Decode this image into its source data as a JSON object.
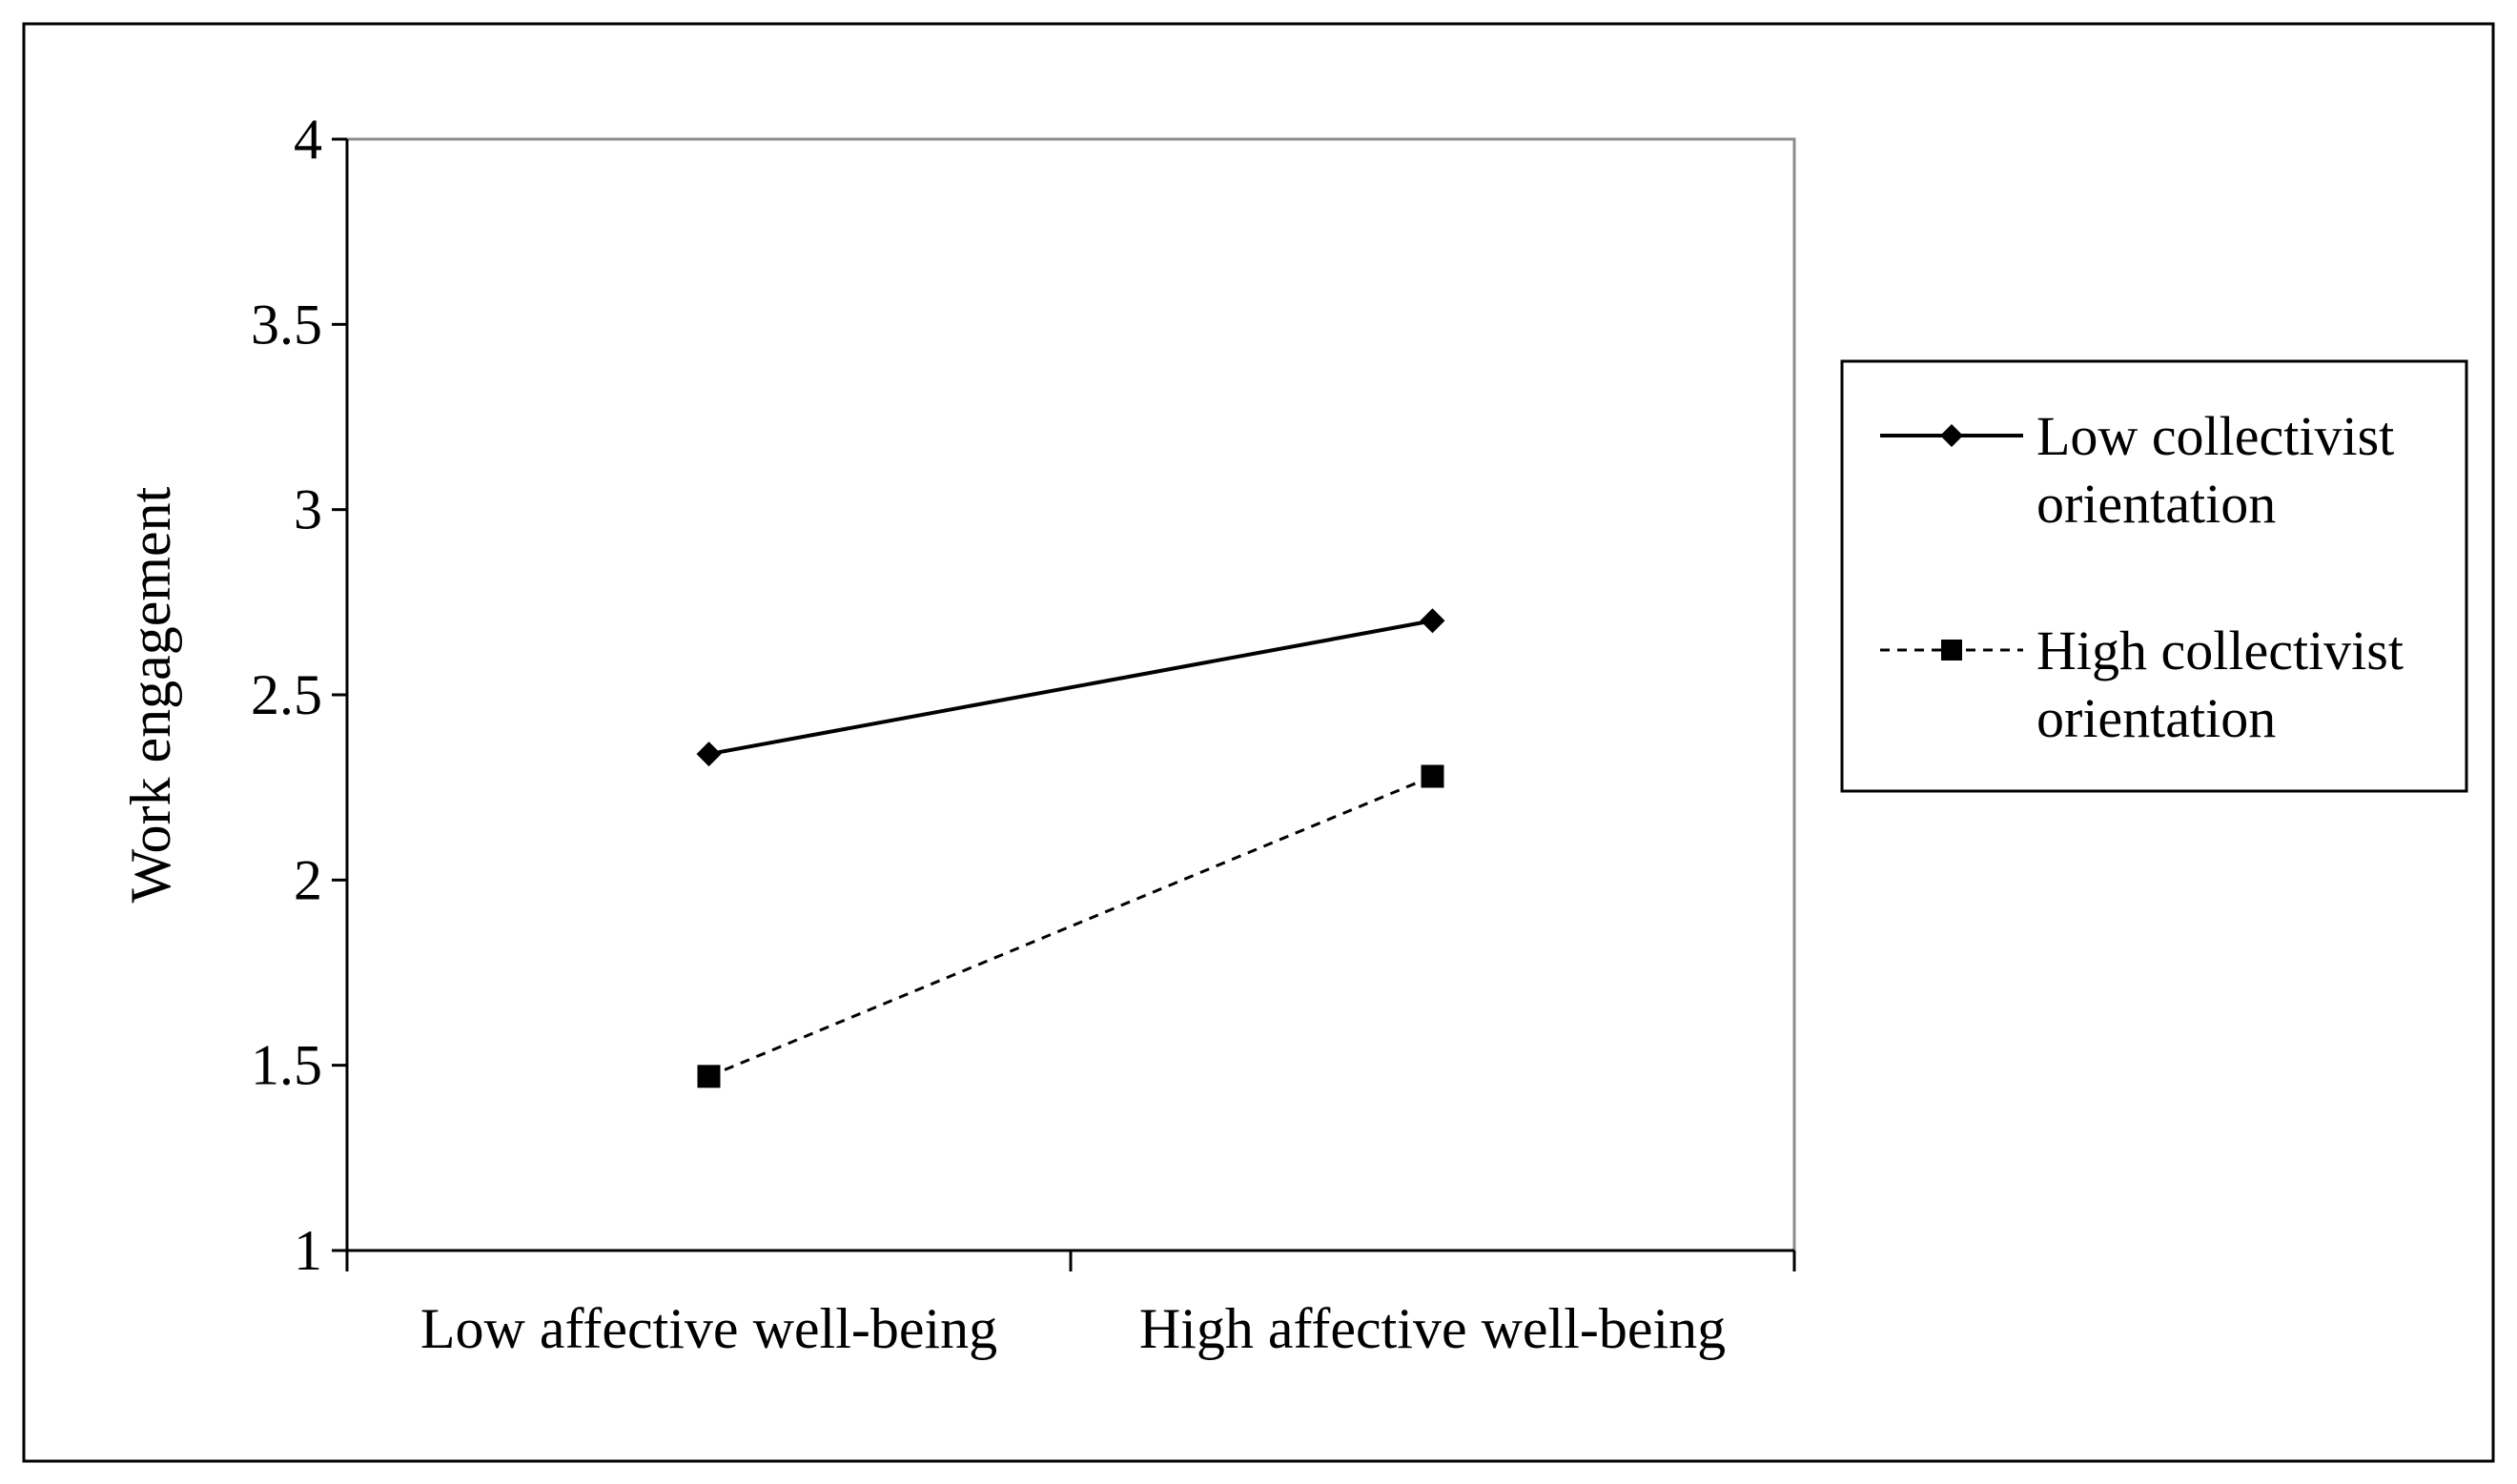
{
  "chart_data": {
    "type": "line",
    "title": "",
    "xlabel": "",
    "ylabel": "Work engagement",
    "categories": [
      "Low affective well-being",
      "High affective well-being"
    ],
    "series": [
      {
        "name": "Low collectivist orientation",
        "name_lines": [
          "Low collectivist",
          "orientation"
        ],
        "values": [
          2.34,
          2.7
        ],
        "marker": "diamond",
        "line_style": "solid"
      },
      {
        "name": "High collectivist orientation",
        "name_lines": [
          "High collectivist",
          "orientation"
        ],
        "values": [
          1.47,
          2.28
        ],
        "marker": "square",
        "line_style": "dashed"
      }
    ],
    "ylim": [
      1,
      4
    ],
    "yticks": [
      "1",
      "1.5",
      "2",
      "2.5",
      "3",
      "3.5",
      "4"
    ],
    "grid": false,
    "legend_position": "right"
  },
  "colors": {
    "line": "#000000",
    "background": "#ffffff"
  }
}
